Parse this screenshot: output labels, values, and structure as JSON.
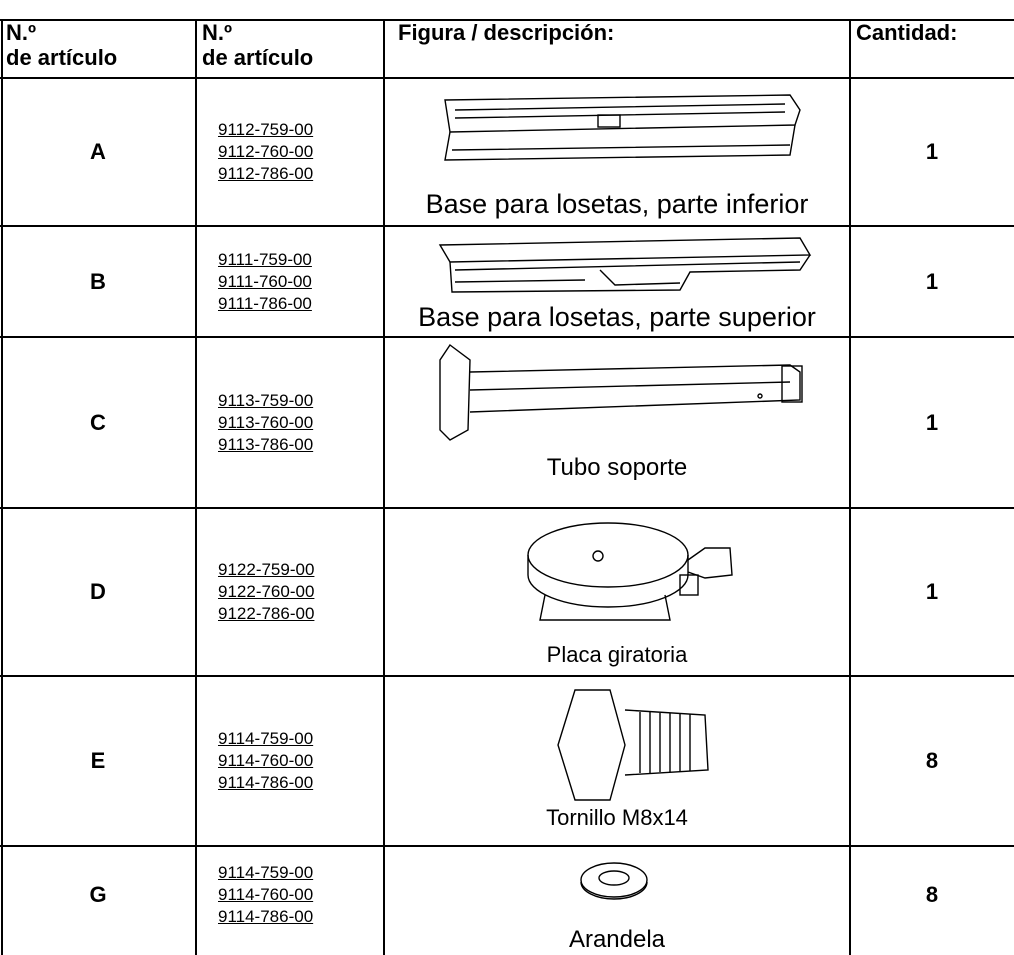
{
  "table": {
    "header": [
      [
        "N.º",
        "de artículo"
      ],
      [
        "N.º",
        "de artículo"
      ],
      [
        "Figura / descripción:"
      ],
      [
        "Cantidad:"
      ]
    ],
    "rows": [
      {
        "item": "A",
        "codes": [
          "9112-759-00",
          "9112-760-00",
          "9112-786-00"
        ],
        "description": "Base para losetas, parte inferior",
        "quantity": 1
      },
      {
        "item": "B",
        "codes": [
          "9111-759-00",
          "9111-760-00",
          "9111-786-00"
        ],
        "description": "Base para losetas, parte superior",
        "quantity": 1
      },
      {
        "item": "C",
        "codes": [
          "9113-759-00",
          "9113-760-00",
          "9113-786-00"
        ],
        "description": "Tubo soporte",
        "quantity": 1
      },
      {
        "item": "D",
        "codes": [
          "9122-759-00",
          "9122-760-00",
          "9122-786-00"
        ],
        "description": "Placa giratoria",
        "quantity": 1
      },
      {
        "item": "E",
        "codes": [
          "9114-759-00",
          "9114-760-00",
          "9114-786-00"
        ],
        "description": "Tornillo M8x14",
        "quantity": 8
      },
      {
        "item": "G",
        "codes": [
          "9114-759-00",
          "9114-760-00",
          "9114-786-00"
        ],
        "description": "Arandela",
        "quantity": 8
      }
    ]
  }
}
